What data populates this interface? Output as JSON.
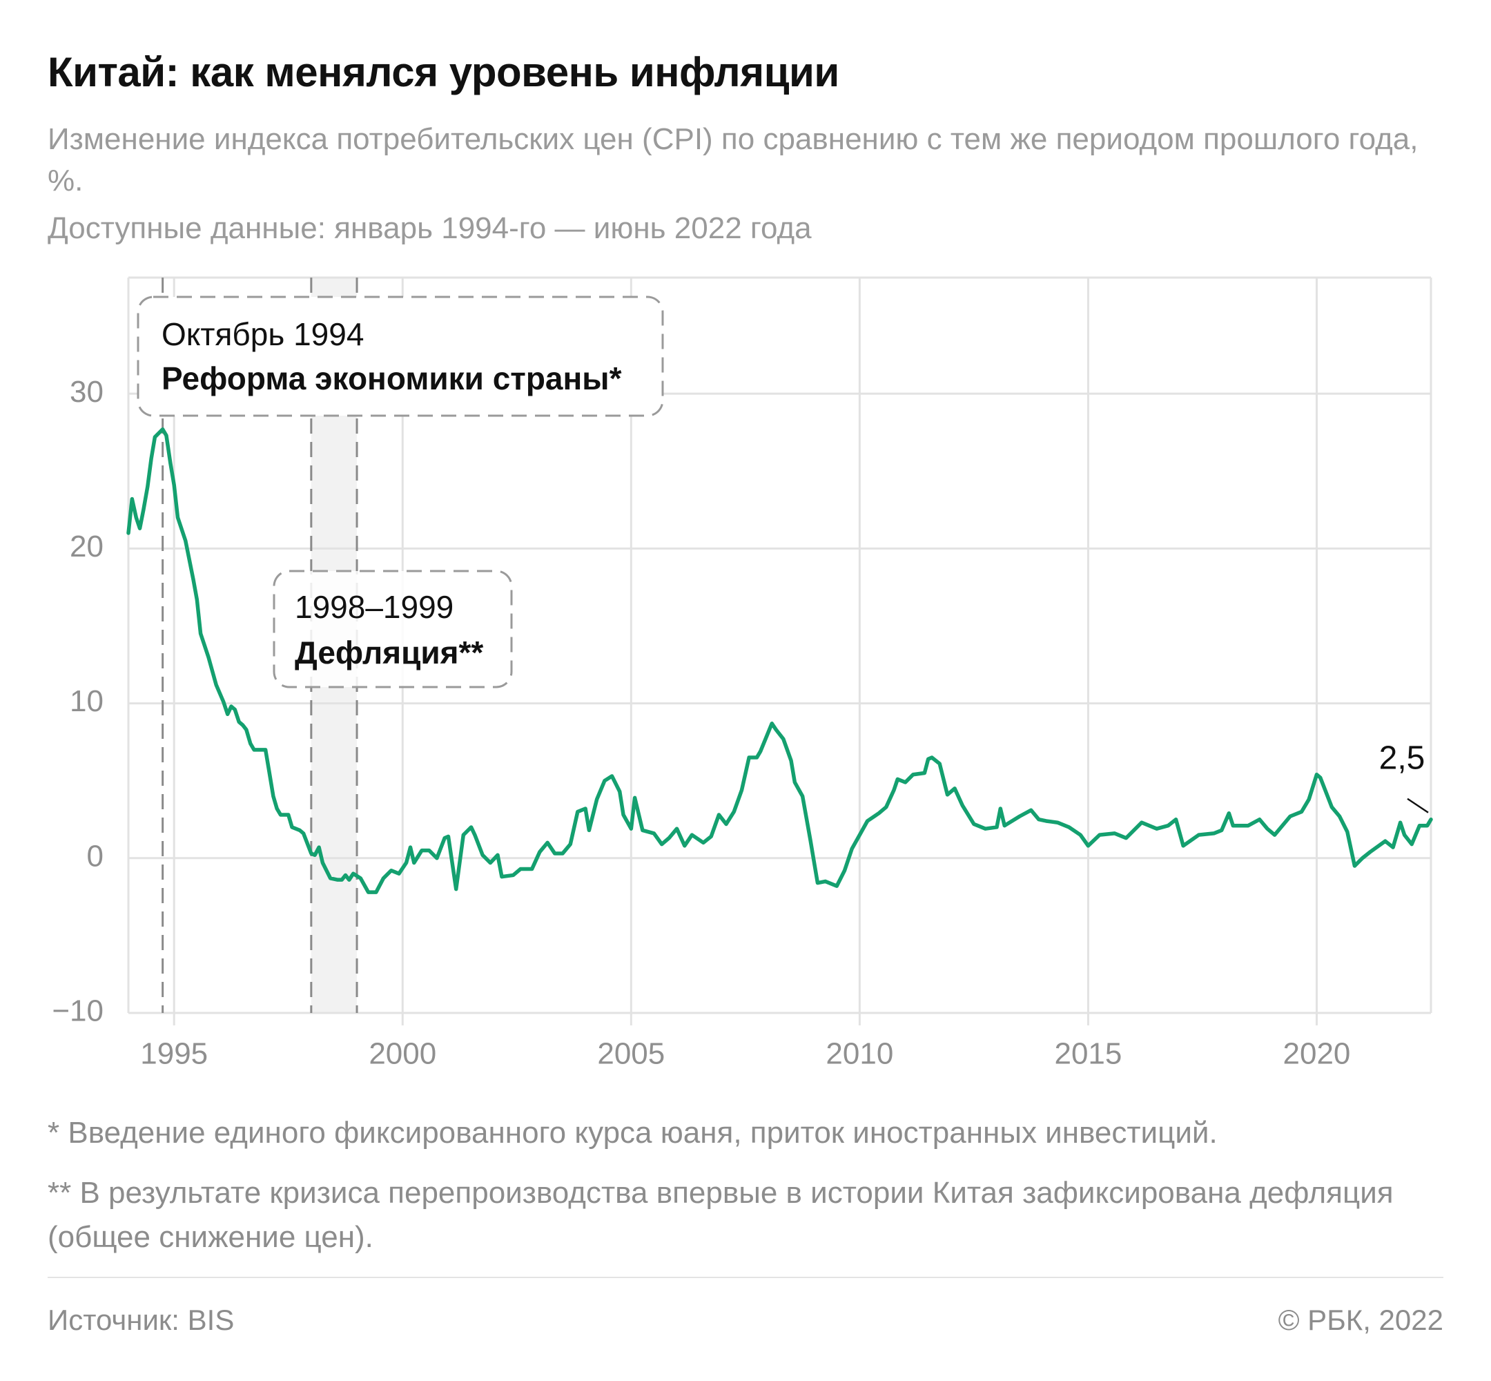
{
  "chart_data": {
    "type": "line",
    "title": "Китай: как менялся уровень инфляции",
    "subtitle": "Изменение индекса потребительских цен (CPI) по сравнению с тем же периодом прошлого года, %.",
    "data_note": "Доступные данные: январь 1994-го — июнь 2022 года",
    "footnotes": [
      "* Введение единого фиксированного курса юаня, приток иностранных инвестиций.",
      "** В результате кризиса перепроизводства впервые в истории Китая зафиксирована дефляция (общее снижение цен)."
    ],
    "source": "Источник: BIS",
    "credit": "© РБК, 2022",
    "color": "#14a06f",
    "grid": true,
    "xlim": [
      1994,
      2022.5
    ],
    "xticks": [
      1995,
      2000,
      2005,
      2010,
      2015,
      2020
    ],
    "ylim": [
      -10,
      37.5
    ],
    "yticks": [
      {
        "value": -10,
        "label": "−10"
      },
      0,
      10,
      20,
      30
    ],
    "annotations": [
      {
        "x": 1994.75,
        "title": "Октябрь 1994",
        "text": "Реформа экономики страны*"
      }
    ],
    "highlights": [
      {
        "x_range": [
          1998,
          1999
        ],
        "title": "1998–1999",
        "text": "Дефляция**"
      }
    ],
    "x": [
      1994.0,
      1994.08,
      1994.17,
      1994.25,
      1994.33,
      1994.42,
      1994.5,
      1994.58,
      1994.75,
      1994.83,
      1994.92,
      1995.0,
      1995.08,
      1995.25,
      1995.42,
      1995.5,
      1995.58,
      1995.75,
      1995.92,
      1996.08,
      1996.17,
      1996.25,
      1996.33,
      1996.42,
      1996.5,
      1996.58,
      1996.67,
      1996.75,
      1997.0,
      1997.08,
      1997.17,
      1997.25,
      1997.33,
      1997.5,
      1997.58,
      1997.75,
      1997.83,
      1998.0,
      1998.08,
      1998.17,
      1998.25,
      1998.42,
      1998.58,
      1998.67,
      1998.75,
      1998.83,
      1998.92,
      1999.08,
      1999.25,
      1999.42,
      1999.58,
      1999.75,
      1999.92,
      2000.08,
      2000.17,
      2000.25,
      2000.42,
      2000.58,
      2000.75,
      2000.92,
      2001.0,
      2001.17,
      2001.33,
      2001.5,
      2001.58,
      2001.75,
      2001.92,
      2002.08,
      2002.17,
      2002.42,
      2002.58,
      2002.83,
      2003.0,
      2003.17,
      2003.33,
      2003.5,
      2003.67,
      2003.83,
      2004.0,
      2004.08,
      2004.25,
      2004.42,
      2004.58,
      2004.75,
      2004.83,
      2005.0,
      2005.08,
      2005.25,
      2005.5,
      2005.67,
      2005.83,
      2006.0,
      2006.17,
      2006.33,
      2006.58,
      2006.75,
      2006.92,
      2007.08,
      2007.25,
      2007.42,
      2007.58,
      2007.75,
      2007.83,
      2008.08,
      2008.17,
      2008.33,
      2008.5,
      2008.58,
      2008.75,
      2008.92,
      2009.08,
      2009.25,
      2009.5,
      2009.67,
      2009.83,
      2010.0,
      2010.17,
      2010.42,
      2010.58,
      2010.75,
      2010.83,
      2011.0,
      2011.17,
      2011.42,
      2011.5,
      2011.58,
      2011.75,
      2011.92,
      2012.08,
      2012.25,
      2012.5,
      2012.75,
      2013.0,
      2013.08,
      2013.17,
      2013.5,
      2013.75,
      2013.92,
      2014.08,
      2014.33,
      2014.58,
      2014.83,
      2015.0,
      2015.25,
      2015.58,
      2015.83,
      2016.0,
      2016.17,
      2016.5,
      2016.75,
      2016.92,
      2017.08,
      2017.42,
      2017.75,
      2017.92,
      2018.08,
      2018.17,
      2018.5,
      2018.75,
      2018.92,
      2019.08,
      2019.42,
      2019.67,
      2019.83,
      2020.0,
      2020.08,
      2020.33,
      2020.5,
      2020.67,
      2020.83,
      2021.0,
      2021.17,
      2021.5,
      2021.67,
      2021.83,
      2021.92,
      2022.08,
      2022.25,
      2022.42,
      2022.5
    ],
    "values": [
      21,
      23.2,
      22,
      21.3,
      22.5,
      24,
      25.8,
      27.2,
      27.7,
      27.3,
      25.5,
      24.1,
      22,
      20.5,
      18,
      16.7,
      14.5,
      13,
      11.2,
      10.1,
      9.3,
      9.8,
      9.6,
      8.8,
      8.6,
      8.3,
      7.4,
      7,
      7,
      5.6,
      4,
      3.2,
      2.8,
      2.8,
      2,
      1.8,
      1.6,
      0.3,
      0.2,
      0.7,
      -0.3,
      -1.3,
      -1.4,
      -1.4,
      -1.1,
      -1.4,
      -1,
      -1.3,
      -2.2,
      -2.2,
      -1.3,
      -0.8,
      -1,
      -0.3,
      0.7,
      -0.3,
      0.5,
      0.5,
      0,
      1.3,
      1.4,
      -2,
      1.5,
      2,
      1.5,
      0.2,
      -0.3,
      0.2,
      -1.2,
      -1.1,
      -0.7,
      -0.7,
      0.4,
      1,
      0.3,
      0.3,
      0.9,
      3,
      3.2,
      1.8,
      3.8,
      5,
      5.3,
      4.3,
      2.8,
      1.9,
      3.9,
      1.8,
      1.6,
      0.9,
      1.3,
      1.9,
      0.8,
      1.5,
      1,
      1.4,
      2.8,
      2.2,
      3,
      4.4,
      6.5,
      6.5,
      6.9,
      8.7,
      8.3,
      7.7,
      6.3,
      4.9,
      4,
      1.2,
      -1.6,
      -1.5,
      -1.8,
      -0.8,
      0.6,
      1.5,
      2.4,
      2.9,
      3.3,
      4.4,
      5.1,
      4.9,
      5.4,
      5.5,
      6.4,
      6.5,
      6.1,
      4.1,
      4.5,
      3.4,
      2.2,
      1.9,
      2,
      3.2,
      2.1,
      2.7,
      3.1,
      2.5,
      2.4,
      2.3,
      2,
      1.5,
      0.8,
      1.5,
      1.6,
      1.3,
      1.8,
      2.3,
      1.9,
      2.1,
      2.5,
      0.8,
      1.5,
      1.6,
      1.8,
      2.9,
      2.1,
      2.1,
      2.5,
      1.9,
      1.5,
      2.7,
      3,
      3.8,
      5.4,
      5.2,
      3.3,
      2.7,
      1.7,
      -0.5,
      0,
      0.4,
      1.1,
      0.7,
      2.3,
      1.5,
      0.9,
      2.1,
      2.1,
      2.5
    ],
    "value_labels": [
      null,
      null,
      null,
      null,
      null,
      null,
      null,
      null,
      null,
      null,
      null,
      null,
      null,
      null,
      null,
      null,
      null,
      null,
      null,
      null,
      null,
      null,
      null,
      null,
      null,
      null,
      null,
      null,
      null,
      null,
      null,
      null,
      null,
      null,
      null,
      null,
      null,
      null,
      null,
      null,
      null,
      null,
      null,
      null,
      null,
      null,
      null,
      null,
      null,
      null,
      null,
      null,
      null,
      null,
      null,
      null,
      null,
      null,
      null,
      null,
      null,
      null,
      null,
      null,
      null,
      null,
      null,
      null,
      null,
      null,
      null,
      null,
      null,
      null,
      null,
      null,
      null,
      null,
      null,
      null,
      null,
      null,
      null,
      null,
      null,
      null,
      null,
      null,
      null,
      null,
      null,
      null,
      null,
      null,
      null,
      null,
      null,
      null,
      null,
      null,
      null,
      null,
      null,
      null,
      null,
      null,
      null,
      null,
      null,
      null,
      null,
      null,
      null,
      null,
      null,
      null,
      null,
      null,
      null,
      null,
      null,
      null,
      null,
      null,
      null,
      null,
      null,
      null,
      null,
      null,
      null,
      null,
      null,
      null,
      null,
      null,
      null,
      null,
      null,
      null,
      null,
      null,
      null,
      null,
      null,
      null,
      null,
      null,
      null,
      null,
      null,
      null,
      null,
      null,
      null,
      null,
      null,
      null,
      null,
      null,
      null,
      null,
      null,
      null,
      null,
      null,
      null,
      null,
      null,
      null,
      null,
      null,
      null,
      null,
      null,
      null,
      null,
      null,
      null,
      "2,5"
    ]
  }
}
